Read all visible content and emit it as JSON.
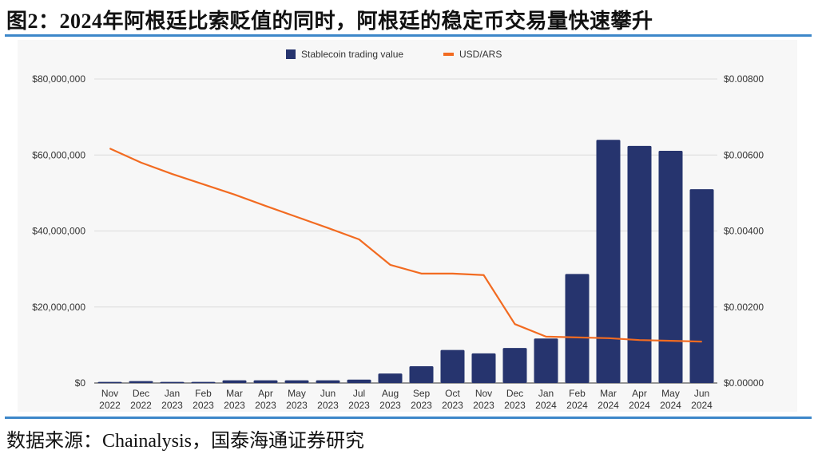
{
  "title": "图2：2024年阿根廷比索贬值的同时，阿根廷的稳定币交易量快速攀升",
  "source": "数据来源：Chainalysis，国泰海通证券研究",
  "chart_data": {
    "type": "bar+line",
    "categories": [
      "Nov 2022",
      "Dec 2022",
      "Jan 2023",
      "Feb 2023",
      "Mar 2023",
      "Apr 2023",
      "May 2023",
      "Jun 2023",
      "Jul 2023",
      "Aug 2023",
      "Sep 2023",
      "Oct 2023",
      "Nov 2023",
      "Dec 2023",
      "Jan 2024",
      "Feb 2024",
      "Mar 2024",
      "Apr 2024",
      "May 2024",
      "Jun 2024"
    ],
    "series": [
      {
        "name": "Stablecoin trading value",
        "type": "bar",
        "axis": "left",
        "color": "#26346e",
        "values": [
          300000,
          500000,
          300000,
          300000,
          700000,
          700000,
          700000,
          700000,
          900000,
          2500000,
          4400000,
          8700000,
          7800000,
          9200000,
          11700000,
          28700000,
          64000000,
          62400000,
          61100000,
          51000000
        ]
      },
      {
        "name": "USD/ARS",
        "type": "line",
        "axis": "right",
        "color": "#f26b21",
        "values": [
          0.00617,
          0.0058,
          0.0055,
          0.00523,
          0.00496,
          0.00466,
          0.00437,
          0.00408,
          0.00378,
          0.00311,
          0.00288,
          0.00288,
          0.00284,
          0.00155,
          0.00122,
          0.0012,
          0.00118,
          0.00113,
          0.00111,
          0.00109
        ]
      }
    ],
    "left_axis": {
      "ylim": [
        0,
        80000000
      ],
      "ticks": [
        "$0",
        "$20,000,000",
        "$40,000,000",
        "$60,000,000",
        "$80,000,000"
      ]
    },
    "right_axis": {
      "ylim": [
        0,
        0.008
      ],
      "ticks": [
        "$0.00000",
        "$0.00200",
        "$0.00400",
        "$0.00600",
        "$0.00800"
      ]
    },
    "grid": true,
    "legend": "top-center"
  }
}
